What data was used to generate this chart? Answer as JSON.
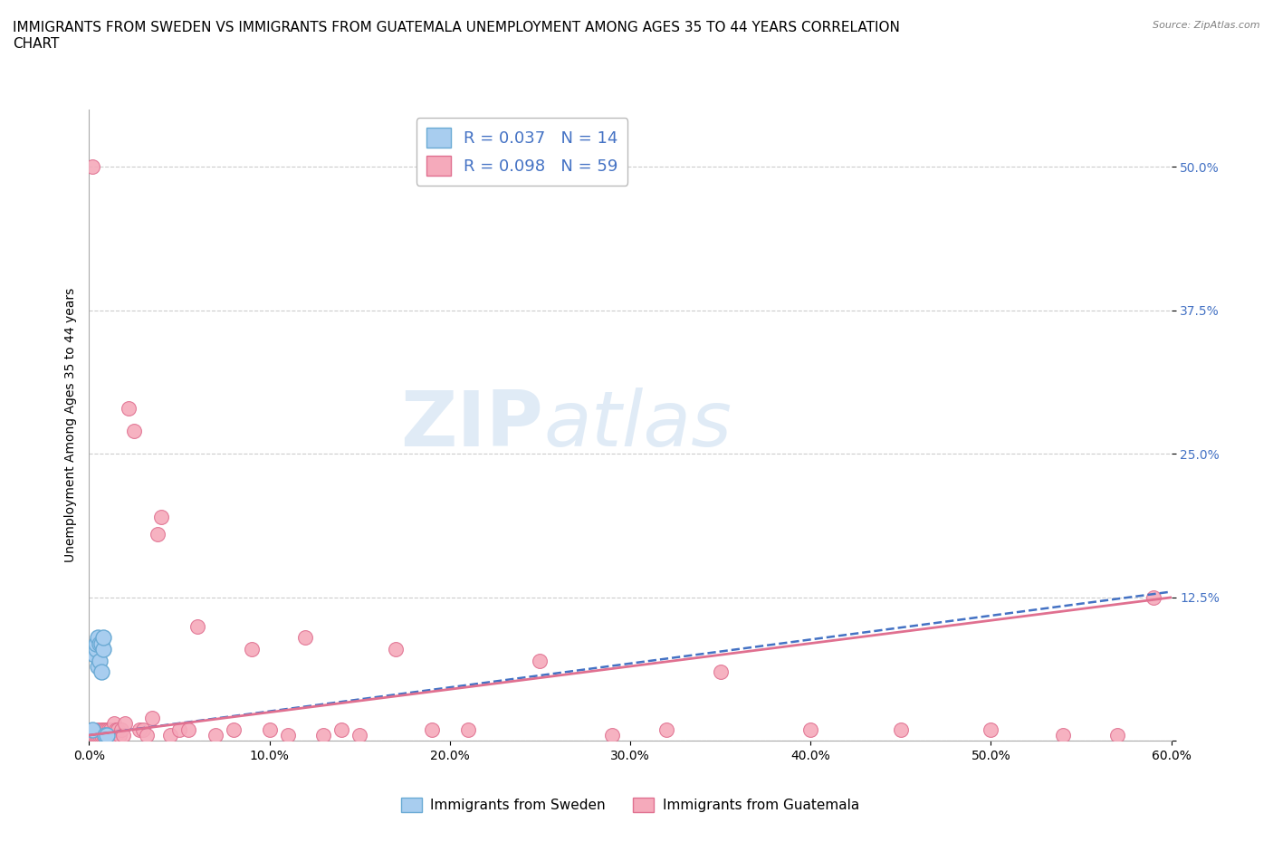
{
  "title": "IMMIGRANTS FROM SWEDEN VS IMMIGRANTS FROM GUATEMALA UNEMPLOYMENT AMONG AGES 35 TO 44 YEARS CORRELATION\nCHART",
  "source": "Source: ZipAtlas.com",
  "ylabel": "Unemployment Among Ages 35 to 44 years",
  "xlim": [
    0.0,
    0.6
  ],
  "ylim": [
    0.0,
    0.55
  ],
  "xticks": [
    0.0,
    0.1,
    0.2,
    0.3,
    0.4,
    0.5,
    0.6
  ],
  "xticklabels": [
    "0.0%",
    "10.0%",
    "20.0%",
    "30.0%",
    "40.0%",
    "50.0%",
    "60.0%"
  ],
  "ytick_positions": [
    0.0,
    0.125,
    0.25,
    0.375,
    0.5
  ],
  "ytick_labels": [
    "",
    "12.5%",
    "25.0%",
    "37.5%",
    "50.0%"
  ],
  "sweden_color": "#A8CDEF",
  "sweden_edge": "#6AAAD4",
  "guatemala_color": "#F5AABB",
  "guatemala_edge": "#E07090",
  "sweden_R": 0.037,
  "sweden_N": 14,
  "guatemala_R": 0.098,
  "guatemala_N": 59,
  "legend_R_color": "#4472C4",
  "watermark_text": "ZIP",
  "watermark_text2": "atlas",
  "background_color": "#FFFFFF",
  "grid_color": "#CCCCCC",
  "title_fontsize": 11,
  "label_fontsize": 10,
  "tick_fontsize": 10,
  "ytick_color": "#4472C4",
  "trend_sweden_color": "#4472C4",
  "trend_guatemala_color": "#E07090",
  "sweden_x": [
    0.002,
    0.003,
    0.004,
    0.004,
    0.005,
    0.005,
    0.006,
    0.006,
    0.007,
    0.007,
    0.008,
    0.008,
    0.009,
    0.01
  ],
  "sweden_y": [
    0.01,
    0.075,
    0.08,
    0.085,
    0.065,
    0.09,
    0.07,
    0.085,
    0.06,
    0.085,
    0.08,
    0.09,
    0.005,
    0.005
  ],
  "guatemala_x": [
    0.002,
    0.003,
    0.004,
    0.005,
    0.005,
    0.006,
    0.007,
    0.007,
    0.008,
    0.008,
    0.009,
    0.009,
    0.01,
    0.01,
    0.011,
    0.012,
    0.013,
    0.014,
    0.015,
    0.015,
    0.016,
    0.017,
    0.018,
    0.019,
    0.02,
    0.022,
    0.025,
    0.028,
    0.03,
    0.032,
    0.035,
    0.038,
    0.04,
    0.045,
    0.05,
    0.055,
    0.06,
    0.07,
    0.08,
    0.09,
    0.1,
    0.11,
    0.12,
    0.13,
    0.14,
    0.15,
    0.17,
    0.19,
    0.21,
    0.25,
    0.29,
    0.32,
    0.35,
    0.4,
    0.45,
    0.5,
    0.54,
    0.57,
    0.59
  ],
  "guatemala_y": [
    0.5,
    0.005,
    0.005,
    0.01,
    0.005,
    0.005,
    0.01,
    0.005,
    0.01,
    0.005,
    0.005,
    0.01,
    0.005,
    0.01,
    0.01,
    0.01,
    0.005,
    0.015,
    0.01,
    0.005,
    0.01,
    0.005,
    0.01,
    0.005,
    0.015,
    0.29,
    0.27,
    0.01,
    0.01,
    0.005,
    0.02,
    0.18,
    0.195,
    0.005,
    0.01,
    0.01,
    0.1,
    0.005,
    0.01,
    0.08,
    0.01,
    0.005,
    0.09,
    0.005,
    0.01,
    0.005,
    0.08,
    0.01,
    0.01,
    0.07,
    0.005,
    0.01,
    0.06,
    0.01,
    0.01,
    0.01,
    0.005,
    0.005,
    0.125
  ],
  "sweden_trend_x0": 0.0,
  "sweden_trend_y0": 0.005,
  "sweden_trend_x1": 0.6,
  "sweden_trend_y1": 0.13,
  "guatemala_trend_x0": 0.0,
  "guatemala_trend_y0": 0.005,
  "guatemala_trend_x1": 0.6,
  "guatemala_trend_y1": 0.125
}
